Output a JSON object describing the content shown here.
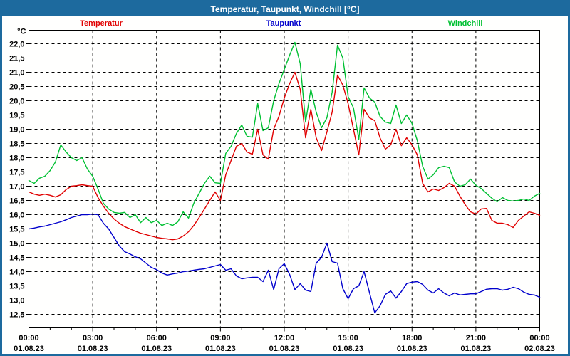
{
  "window": {
    "title": "Temperatur, Taupunkt, Windchill [°C]"
  },
  "legend": [
    {
      "label": "Temperatur",
      "color": "#e00000"
    },
    {
      "label": "Taupunkt",
      "color": "#0000cc"
    },
    {
      "label": "Windchill",
      "color": "#00c032"
    }
  ],
  "colors": {
    "titlebar": "#1d6a9e",
    "window_border": "#1d6a9e",
    "plot_frame": "#000000",
    "gridline": "#000000",
    "background": "#fffffe"
  },
  "chart_data": {
    "type": "line",
    "title": "Temperatur, Taupunkt, Windchill [°C]",
    "ylabel": "°C",
    "ylim": [
      12.5,
      22.0
    ],
    "y_tick_step": 0.5,
    "y_tick_labels": [
      "22,0",
      "21,5",
      "21,0",
      "20,5",
      "20,0",
      "19,5",
      "19,0",
      "18,5",
      "18,0",
      "17,5",
      "17,0",
      "16,5",
      "16,0",
      "15,5",
      "15,0",
      "14,5",
      "14,0",
      "13,5",
      "13,0",
      "12,5"
    ],
    "decimal_separator": ",",
    "grid": {
      "horizontal": true,
      "vertical_major_hours": 3,
      "minor_tick_hours": 1,
      "style": "dashed"
    },
    "x_start_hour": 0,
    "x_end_hour": 24,
    "x_step_hours": 0.25,
    "x_axis_labels": [
      {
        "hour": 0,
        "time": "00:00",
        "date": "01.08.23"
      },
      {
        "hour": 3,
        "time": "03:00",
        "date": "01.08.23"
      },
      {
        "hour": 6,
        "time": "06:00",
        "date": "01.08.23"
      },
      {
        "hour": 9,
        "time": "09:00",
        "date": "01.08.23"
      },
      {
        "hour": 12,
        "time": "12:00",
        "date": "01.08.23"
      },
      {
        "hour": 15,
        "time": "15:00",
        "date": "01.08.23"
      },
      {
        "hour": 18,
        "time": "18:00",
        "date": "01.08.23"
      },
      {
        "hour": 21,
        "time": "21:00",
        "date": "01.08.23"
      },
      {
        "hour": 24,
        "time": "00:00",
        "date": "02.08.23"
      }
    ],
    "legend_position": "top",
    "series": [
      {
        "name": "Temperatur",
        "color": "#e00000",
        "values": [
          16.8,
          16.72,
          16.68,
          16.72,
          16.68,
          16.62,
          16.7,
          16.88,
          17.0,
          17.02,
          17.05,
          17.02,
          17.0,
          16.6,
          16.3,
          16.05,
          15.85,
          15.7,
          15.58,
          15.5,
          15.42,
          15.35,
          15.3,
          15.25,
          15.2,
          15.17,
          15.15,
          15.12,
          15.15,
          15.25,
          15.4,
          15.62,
          15.9,
          16.2,
          16.5,
          16.8,
          16.5,
          17.4,
          17.9,
          18.4,
          18.5,
          18.2,
          18.12,
          19.0,
          18.1,
          17.95,
          19.0,
          19.45,
          20.1,
          20.6,
          21.0,
          20.4,
          18.7,
          19.7,
          18.7,
          18.25,
          18.9,
          19.6,
          20.9,
          20.55,
          19.9,
          19.0,
          18.1,
          19.7,
          19.4,
          19.3,
          18.7,
          18.3,
          18.45,
          19.0,
          18.42,
          18.7,
          18.45,
          18.1,
          17.1,
          16.8,
          16.9,
          16.85,
          16.95,
          17.1,
          17.0,
          16.65,
          16.35,
          16.1,
          16.02,
          16.2,
          16.22,
          15.8,
          15.7,
          15.7,
          15.65,
          15.55,
          15.8,
          15.95,
          16.1,
          16.05,
          15.98
        ]
      },
      {
        "name": "Taupunkt",
        "color": "#0000cc",
        "values": [
          15.5,
          15.53,
          15.57,
          15.6,
          15.65,
          15.7,
          15.75,
          15.82,
          15.9,
          15.95,
          16.0,
          16.0,
          16.02,
          16.0,
          15.7,
          15.5,
          15.2,
          14.9,
          14.7,
          14.62,
          14.52,
          14.45,
          14.3,
          14.15,
          14.07,
          13.95,
          13.88,
          13.92,
          13.95,
          14.0,
          14.02,
          14.05,
          14.08,
          14.1,
          14.15,
          14.2,
          14.25,
          14.05,
          14.1,
          13.85,
          13.75,
          13.78,
          13.8,
          13.8,
          13.65,
          14.05,
          13.37,
          14.1,
          14.28,
          13.9,
          13.37,
          13.58,
          13.35,
          13.3,
          14.3,
          14.5,
          15.0,
          14.35,
          14.3,
          13.4,
          13.05,
          13.4,
          13.5,
          14.0,
          13.27,
          12.55,
          12.8,
          13.2,
          13.32,
          13.07,
          13.3,
          13.58,
          13.63,
          13.65,
          13.55,
          13.35,
          13.25,
          13.4,
          13.25,
          13.15,
          13.25,
          13.18,
          13.2,
          13.22,
          13.22,
          13.3,
          13.38,
          13.4,
          13.4,
          13.35,
          13.38,
          13.45,
          13.4,
          13.28,
          13.2,
          13.18,
          13.1
        ]
      },
      {
        "name": "Windchill",
        "color": "#00c032",
        "values": [
          17.2,
          17.1,
          17.28,
          17.35,
          17.55,
          17.85,
          18.45,
          18.2,
          18.0,
          17.9,
          18.0,
          17.6,
          17.35,
          16.9,
          16.4,
          16.2,
          16.08,
          16.05,
          16.08,
          15.9,
          16.0,
          15.72,
          15.9,
          15.72,
          15.8,
          15.62,
          15.7,
          15.62,
          15.75,
          16.1,
          15.88,
          16.4,
          16.75,
          17.1,
          17.35,
          17.12,
          17.1,
          18.15,
          18.4,
          18.85,
          19.15,
          18.75,
          18.72,
          19.9,
          18.95,
          19.05,
          20.0,
          20.6,
          21.1,
          21.6,
          22.05,
          21.3,
          19.25,
          20.4,
          19.6,
          19.05,
          19.4,
          20.3,
          21.95,
          21.5,
          20.15,
          19.75,
          18.65,
          20.45,
          20.1,
          19.95,
          19.45,
          19.25,
          19.2,
          19.85,
          19.2,
          19.5,
          19.2,
          18.6,
          17.7,
          17.25,
          17.4,
          17.65,
          17.7,
          17.65,
          17.15,
          17.0,
          17.05,
          17.25,
          17.03,
          16.92,
          16.75,
          16.58,
          16.45,
          16.6,
          16.5,
          16.48,
          16.5,
          16.55,
          16.5,
          16.65,
          16.75
        ]
      }
    ]
  }
}
